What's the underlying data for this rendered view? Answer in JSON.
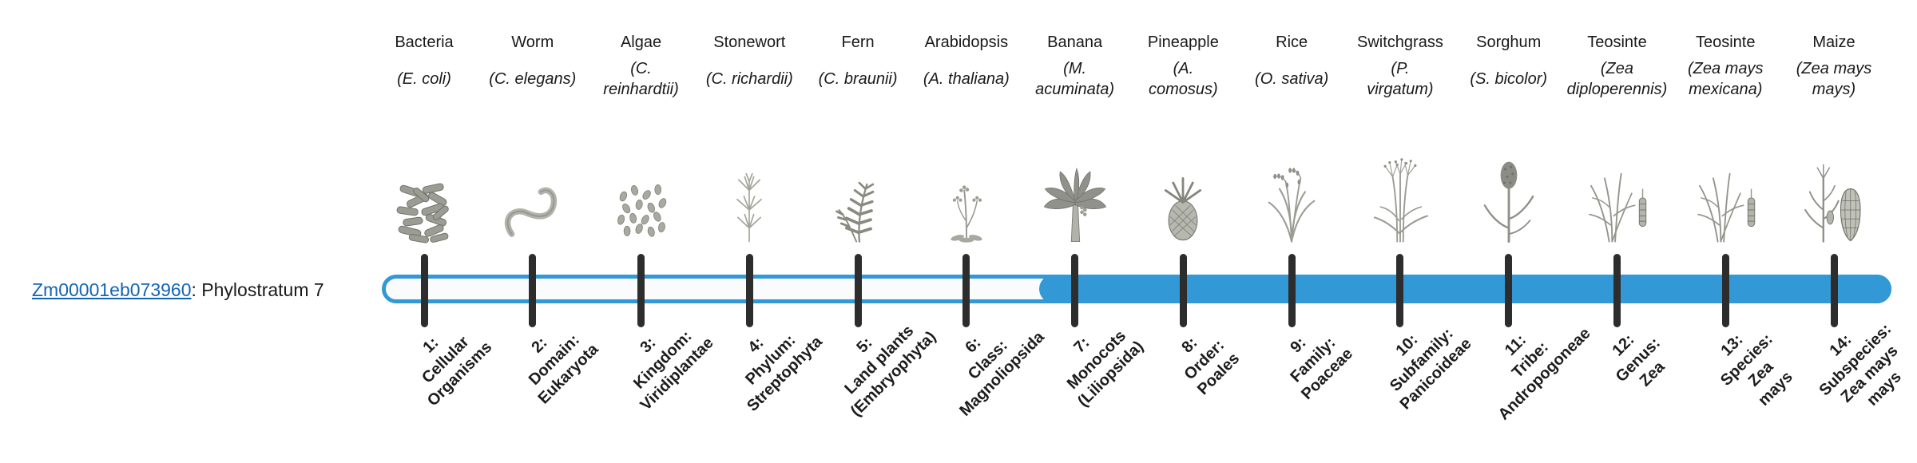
{
  "gene_label": {
    "id_text": "Zm00001eb073960",
    "rest_text": ": Phylostratum 7",
    "link_color": "#1464b4"
  },
  "bar": {
    "filled_from_stratum": 7,
    "fill_color": "#3399d6",
    "track_bg": "#fafbfc",
    "tick_color": "#2d2d2d"
  },
  "strata": [
    {
      "common": "Bacteria",
      "sci": "(E. coli)",
      "icon": "bacteria",
      "tick_label": "1:\nCellular\nOrganisms"
    },
    {
      "common": "Worm",
      "sci": "(C. elegans)",
      "icon": "worm",
      "tick_label": "2:\nDomain:\nEukaryota"
    },
    {
      "common": "Algae",
      "sci": "(C.\nreinhardtii)",
      "icon": "algae",
      "tick_label": "3:\nKingdom:\nViridiplantae"
    },
    {
      "common": "Stonewort",
      "sci": "(C. richardii)",
      "icon": "stonewort",
      "tick_label": "4:\nPhylum:\nStreptophyta"
    },
    {
      "common": "Fern",
      "sci": "(C. braunii)",
      "icon": "fern",
      "tick_label": "5:\nLand plants\n(Embryophyta)"
    },
    {
      "common": "Arabidopsis",
      "sci": "(A. thaliana)",
      "icon": "arabidopsis",
      "tick_label": "6:\nClass:\nMagnoliopsida"
    },
    {
      "common": "Banana",
      "sci": "(M.\nacuminata)",
      "icon": "banana",
      "tick_label": "7:\nMonocots\n(Liliopsida)"
    },
    {
      "common": "Pineapple",
      "sci": "(A.\ncomosus)",
      "icon": "pineapple",
      "tick_label": "8:\nOrder:\nPoales"
    },
    {
      "common": "Rice",
      "sci": "(O. sativa)",
      "icon": "rice",
      "tick_label": "9:\nFamily:\nPoaceae"
    },
    {
      "common": "Switchgrass",
      "sci": "(P.\nvirgatum)",
      "icon": "switchgrass",
      "tick_label": "10:\nSubfamily:\nPanicoideae"
    },
    {
      "common": "Sorghum",
      "sci": "(S. bicolor)",
      "icon": "sorghum",
      "tick_label": "11:\nTribe:\nAndropogoneae"
    },
    {
      "common": "Teosinte",
      "sci": "(Zea\ndiploperennis)",
      "icon": "teosinte-diploperennis",
      "tick_label": "12:\nGenus:\nZea"
    },
    {
      "common": "Teosinte",
      "sci": "(Zea mays\nmexicana)",
      "icon": "teosinte-mexicana",
      "tick_label": "13:\nSpecies:\nZea\nmays"
    },
    {
      "common": "Maize",
      "sci": "(Zea mays\nmays)",
      "icon": "maize",
      "tick_label": "14:\nSubspecies:\nZea mays\nmays"
    }
  ]
}
